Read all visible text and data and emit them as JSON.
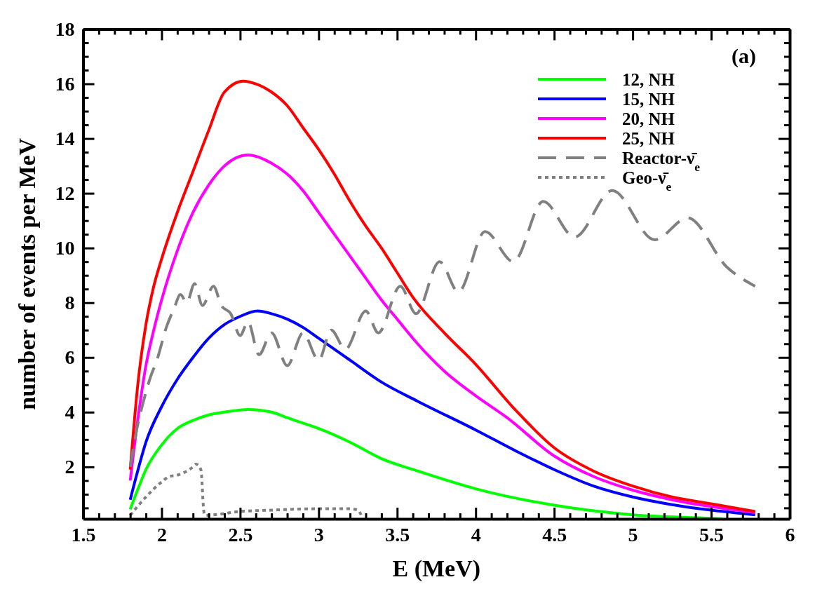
{
  "chart_data": {
    "type": "line",
    "xlabel": "E (MeV)",
    "ylabel": "number of events per MeV",
    "annotations": [
      "(a)"
    ],
    "xlim": [
      1.5,
      6
    ],
    "ylim": [
      0.1,
      18
    ],
    "xticks": [
      1.5,
      {
        "value": 1.6,
        "label": null
      },
      {
        "value": 1.7,
        "label": null
      },
      {
        "value": 1.8,
        "label": null
      },
      {
        "value": 1.9,
        "label": null
      },
      2,
      {
        "value": 2.1,
        "label": null
      },
      {
        "value": 2.2,
        "label": null
      },
      {
        "value": 2.3,
        "label": null
      },
      {
        "value": 2.4,
        "label": null
      },
      2.5,
      {
        "value": 2.6,
        "label": null
      },
      {
        "value": 2.7,
        "label": null
      },
      {
        "value": 2.8,
        "label": null
      },
      {
        "value": 2.9,
        "label": null
      },
      3,
      {
        "value": 3.1,
        "label": null
      },
      {
        "value": 3.2,
        "label": null
      },
      {
        "value": 3.3,
        "label": null
      },
      {
        "value": 3.4,
        "label": null
      },
      3.5,
      {
        "value": 3.6,
        "label": null
      },
      {
        "value": 3.7,
        "label": null
      },
      {
        "value": 3.8,
        "label": null
      },
      {
        "value": 3.9,
        "label": null
      },
      4,
      {
        "value": 4.1,
        "label": null
      },
      {
        "value": 4.2,
        "label": null
      },
      {
        "value": 4.3,
        "label": null
      },
      {
        "value": 4.4,
        "label": null
      },
      4.5,
      {
        "value": 4.6,
        "label": null
      },
      {
        "value": 4.7,
        "label": null
      },
      {
        "value": 4.8,
        "label": null
      },
      {
        "value": 4.9,
        "label": null
      },
      5,
      {
        "value": 5.1,
        "label": null
      },
      {
        "value": 5.2,
        "label": null
      },
      {
        "value": 5.3,
        "label": null
      },
      {
        "value": 5.4,
        "label": null
      },
      5.5,
      {
        "value": 5.6,
        "label": null
      },
      {
        "value": 5.7,
        "label": null
      },
      {
        "value": 5.8,
        "label": null
      },
      {
        "value": 5.9,
        "label": null
      },
      6
    ],
    "yticks": [
      {
        "value": 0.5,
        "label": null
      },
      {
        "value": 1,
        "label": null
      },
      {
        "value": 1.5,
        "label": null
      },
      2,
      {
        "value": 2.5,
        "label": null
      },
      {
        "value": 3,
        "label": null
      },
      {
        "value": 3.5,
        "label": null
      },
      4,
      {
        "value": 4.5,
        "label": null
      },
      {
        "value": 5,
        "label": null
      },
      {
        "value": 5.5,
        "label": null
      },
      6,
      {
        "value": 6.5,
        "label": null
      },
      {
        "value": 7,
        "label": null
      },
      {
        "value": 7.5,
        "label": null
      },
      8,
      {
        "value": 8.5,
        "label": null
      },
      {
        "value": 9,
        "label": null
      },
      {
        "value": 9.5,
        "label": null
      },
      10,
      {
        "value": 10.5,
        "label": null
      },
      {
        "value": 11,
        "label": null
      },
      {
        "value": 11.5,
        "label": null
      },
      12,
      {
        "value": 12.5,
        "label": null
      },
      {
        "value": 13,
        "label": null
      },
      {
        "value": 13.5,
        "label": null
      },
      14,
      {
        "value": 14.5,
        "label": null
      },
      {
        "value": 15,
        "label": null
      },
      {
        "value": 15.5,
        "label": null
      },
      16,
      {
        "value": 16.5,
        "label": null
      },
      {
        "value": 17,
        "label": null
      },
      {
        "value": 17.5,
        "label": null
      },
      18
    ],
    "grid": false,
    "legend": "top right",
    "marker": "none",
    "series": [
      {
        "name": "12, NH",
        "color": "#00ff00",
        "line_style": "solid",
        "x": [
          1.8,
          1.85,
          1.9,
          2.0,
          2.1,
          2.2,
          2.3,
          2.4,
          2.55,
          2.7,
          2.8,
          2.9,
          3.0,
          3.2,
          3.4,
          3.63,
          4.0,
          4.5,
          5.0,
          5.5,
          5.57
        ],
        "values": [
          0.45,
          1.2,
          1.9,
          2.8,
          3.4,
          3.7,
          3.9,
          4.0,
          4.1,
          4.0,
          3.8,
          3.6,
          3.4,
          2.9,
          2.3,
          1.85,
          1.2,
          0.6,
          0.25,
          0.12,
          0.1
        ]
      },
      {
        "name": "15, NH",
        "color": "#0000ff",
        "line_style": "solid",
        "x": [
          1.8,
          1.85,
          1.9,
          2.0,
          2.1,
          2.2,
          2.3,
          2.4,
          2.5,
          2.61,
          2.7,
          2.8,
          2.9,
          3.0,
          3.2,
          3.4,
          3.63,
          4.0,
          4.25,
          4.5,
          4.75,
          5.0,
          5.25,
          5.5,
          5.78
        ],
        "values": [
          0.8,
          1.9,
          2.9,
          4.2,
          5.2,
          6.0,
          6.7,
          7.2,
          7.5,
          7.7,
          7.6,
          7.4,
          7.1,
          6.7,
          5.9,
          5.1,
          4.4,
          3.35,
          2.6,
          1.9,
          1.3,
          0.9,
          0.62,
          0.42,
          0.25
        ]
      },
      {
        "name": "20, NH",
        "color": "#ff00ff",
        "line_style": "solid",
        "x": [
          1.8,
          1.85,
          1.9,
          1.95,
          2.0,
          2.1,
          2.2,
          2.3,
          2.4,
          2.55,
          2.7,
          2.8,
          2.9,
          3.0,
          3.1,
          3.2,
          3.3,
          3.4,
          3.5,
          3.63,
          3.8,
          4.0,
          4.2,
          4.5,
          4.75,
          5.0,
          5.25,
          5.5,
          5.78
        ],
        "values": [
          1.5,
          3.8,
          5.7,
          7.0,
          8.1,
          9.9,
          11.3,
          12.3,
          13.0,
          13.4,
          13.1,
          12.7,
          12.1,
          11.3,
          10.5,
          9.7,
          8.9,
          8.1,
          7.4,
          6.5,
          5.5,
          4.6,
          3.8,
          2.4,
          1.65,
          1.15,
          0.8,
          0.55,
          0.33
        ]
      },
      {
        "name": "25, NH",
        "color": "#ff0000",
        "line_style": "solid",
        "x": [
          1.8,
          1.85,
          1.9,
          1.95,
          2.0,
          2.1,
          2.2,
          2.3,
          2.4,
          2.52,
          2.6,
          2.7,
          2.8,
          2.9,
          3.0,
          3.1,
          3.2,
          3.3,
          3.4,
          3.5,
          3.6,
          3.8,
          4.0,
          4.25,
          4.5,
          4.75,
          5.0,
          5.25,
          5.5,
          5.78
        ],
        "values": [
          1.9,
          5.1,
          7.2,
          8.6,
          9.6,
          11.3,
          12.8,
          14.3,
          15.7,
          16.1,
          16.0,
          15.7,
          15.2,
          14.4,
          13.6,
          12.7,
          11.7,
          10.8,
          10.0,
          9.1,
          8.2,
          6.9,
          5.75,
          4.1,
          2.7,
          1.85,
          1.3,
          0.9,
          0.65,
          0.37
        ]
      },
      {
        "name": "Reactor-ν̄$_{e}$",
        "color": "#808080",
        "line_style": "dashed",
        "x": [
          1.8,
          1.85,
          1.88,
          1.93,
          1.97,
          2.03,
          2.08,
          2.12,
          2.16,
          2.21,
          2.26,
          2.33,
          2.38,
          2.44,
          2.5,
          2.55,
          2.62,
          2.7,
          2.8,
          2.9,
          3.0,
          3.08,
          3.17,
          3.3,
          3.38,
          3.52,
          3.62,
          3.77,
          3.89,
          4.06,
          4.24,
          4.43,
          4.63,
          4.87,
          5.14,
          5.35,
          5.6,
          5.78
        ],
        "values": [
          2.0,
          3.6,
          4.3,
          5.3,
          5.9,
          7.1,
          7.8,
          8.3,
          8.0,
          8.7,
          7.9,
          8.6,
          7.9,
          7.6,
          6.8,
          7.3,
          6.1,
          6.9,
          5.7,
          6.9,
          5.9,
          7.0,
          6.3,
          7.7,
          6.9,
          8.6,
          7.6,
          9.5,
          8.4,
          10.6,
          9.5,
          11.7,
          10.4,
          12.1,
          10.3,
          11.1,
          9.3,
          8.6
        ]
      },
      {
        "name": "Geo-ν̄$_{e}$",
        "color": "#808080",
        "line_style": "dotted",
        "x": [
          1.8,
          1.9,
          2.0,
          2.05,
          2.1,
          2.2,
          2.22,
          2.25,
          2.27,
          2.28,
          2.5,
          2.7,
          3.0,
          3.2,
          3.25,
          3.28
        ],
        "values": [
          0.23,
          0.9,
          1.45,
          1.65,
          1.7,
          2.0,
          2.1,
          1.9,
          0.33,
          0.23,
          0.37,
          0.42,
          0.47,
          0.47,
          0.42,
          0.1
        ]
      }
    ]
  }
}
